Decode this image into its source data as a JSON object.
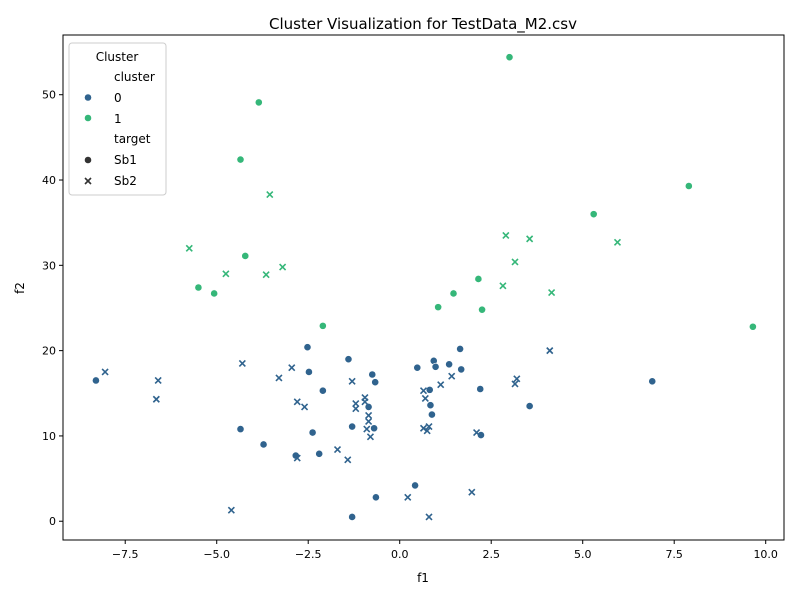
{
  "chart_data": {
    "type": "scatter",
    "title": "Cluster Visualization for TestData_M2.csv",
    "xlabel": "f1",
    "ylabel": "f2",
    "xlim": [
      -9.2,
      10.5
    ],
    "ylim": [
      -2.2,
      57.0
    ],
    "xticks": [
      -7.5,
      -5.0,
      -2.5,
      0.0,
      2.5,
      5.0,
      7.5,
      10.0
    ],
    "xtick_labels": [
      "−7.5",
      "−5.0",
      "−2.5",
      "0.0",
      "2.5",
      "5.0",
      "7.5",
      "10.0"
    ],
    "yticks": [
      0,
      10,
      20,
      30,
      40,
      50
    ],
    "ytick_labels": [
      "0",
      "10",
      "20",
      "30",
      "40",
      "50"
    ],
    "grid": false,
    "legend": {
      "placement": "top-left",
      "title": "Cluster",
      "hue_heading": "cluster",
      "hue_items": [
        {
          "label": "0",
          "color": "#30638e"
        },
        {
          "label": "1",
          "color": "#35b779"
        }
      ],
      "style_heading": "target",
      "style_items": [
        {
          "label": "Sb1",
          "marker": "circle"
        },
        {
          "label": "Sb2",
          "marker": "x"
        }
      ]
    },
    "colors": {
      "0": "#30638e",
      "1": "#35b779"
    },
    "series": [
      {
        "cluster": "0",
        "target": "Sb1",
        "points": [
          [
            -8.3,
            16.5
          ],
          [
            -4.35,
            10.8
          ],
          [
            -3.72,
            9.0
          ],
          [
            -2.84,
            7.7
          ],
          [
            -2.52,
            20.4
          ],
          [
            -2.48,
            17.5
          ],
          [
            -2.38,
            10.4
          ],
          [
            -2.2,
            7.9
          ],
          [
            -2.1,
            15.3
          ],
          [
            -1.4,
            19.0
          ],
          [
            -1.3,
            11.1
          ],
          [
            -1.3,
            0.5
          ],
          [
            -0.85,
            13.4
          ],
          [
            -0.75,
            17.2
          ],
          [
            -0.7,
            10.9
          ],
          [
            -0.67,
            16.3
          ],
          [
            -0.65,
            2.8
          ],
          [
            0.42,
            4.2
          ],
          [
            0.48,
            18.0
          ],
          [
            0.82,
            15.4
          ],
          [
            0.84,
            13.6
          ],
          [
            0.88,
            12.5
          ],
          [
            0.93,
            18.8
          ],
          [
            0.98,
            18.1
          ],
          [
            1.35,
            18.4
          ],
          [
            1.65,
            20.2
          ],
          [
            1.68,
            17.8
          ],
          [
            2.2,
            15.5
          ],
          [
            2.22,
            10.1
          ],
          [
            3.55,
            13.5
          ],
          [
            6.9,
            16.4
          ]
        ]
      },
      {
        "cluster": "0",
        "target": "Sb2",
        "points": [
          [
            -8.05,
            17.5
          ],
          [
            -6.6,
            16.5
          ],
          [
            -6.65,
            14.3
          ],
          [
            -4.6,
            1.3
          ],
          [
            -4.3,
            18.5
          ],
          [
            -3.3,
            16.8
          ],
          [
            -2.95,
            18.0
          ],
          [
            -2.8,
            14.0
          ],
          [
            -2.8,
            7.4
          ],
          [
            -2.6,
            13.4
          ],
          [
            -1.7,
            8.4
          ],
          [
            -1.42,
            7.2
          ],
          [
            -1.3,
            16.4
          ],
          [
            -1.2,
            13.8
          ],
          [
            -1.2,
            13.2
          ],
          [
            -0.95,
            14.5
          ],
          [
            -0.95,
            14.0
          ],
          [
            -0.9,
            10.8
          ],
          [
            -0.85,
            12.4
          ],
          [
            -0.85,
            11.7
          ],
          [
            -0.8,
            9.9
          ],
          [
            0.22,
            2.8
          ],
          [
            0.65,
            15.3
          ],
          [
            0.65,
            10.9
          ],
          [
            0.7,
            14.4
          ],
          [
            0.75,
            10.6
          ],
          [
            0.8,
            11.1
          ],
          [
            0.8,
            0.5
          ],
          [
            1.12,
            16.0
          ],
          [
            1.42,
            17.0
          ],
          [
            1.97,
            3.4
          ],
          [
            2.1,
            10.4
          ],
          [
            3.15,
            16.1
          ],
          [
            3.2,
            16.7
          ],
          [
            4.1,
            20.0
          ]
        ]
      },
      {
        "cluster": "1",
        "target": "Sb1",
        "points": [
          [
            -5.5,
            27.4
          ],
          [
            -5.07,
            26.7
          ],
          [
            -4.35,
            42.4
          ],
          [
            -4.22,
            31.1
          ],
          [
            -3.85,
            49.1
          ],
          [
            -2.1,
            22.9
          ],
          [
            1.05,
            25.1
          ],
          [
            1.47,
            26.7
          ],
          [
            2.15,
            28.4
          ],
          [
            2.25,
            24.8
          ],
          [
            3.0,
            54.4
          ],
          [
            5.3,
            36.0
          ],
          [
            7.9,
            39.3
          ],
          [
            9.65,
            22.8
          ]
        ]
      },
      {
        "cluster": "1",
        "target": "Sb2",
        "points": [
          [
            -5.75,
            32.0
          ],
          [
            -4.75,
            29.0
          ],
          [
            -3.65,
            28.9
          ],
          [
            -3.55,
            38.3
          ],
          [
            -3.2,
            29.8
          ],
          [
            2.82,
            27.6
          ],
          [
            2.9,
            33.5
          ],
          [
            3.15,
            30.4
          ],
          [
            3.55,
            33.1
          ],
          [
            4.15,
            26.8
          ],
          [
            5.95,
            32.7
          ]
        ]
      }
    ]
  }
}
